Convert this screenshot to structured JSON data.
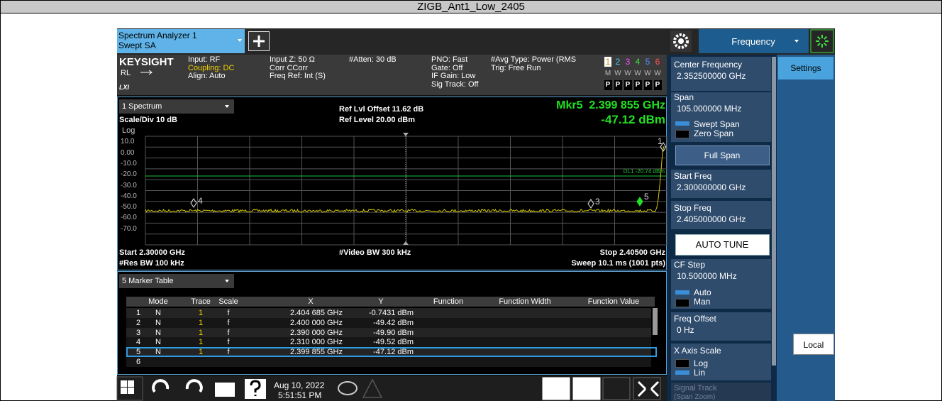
{
  "window_title": "ZIGB_Ant1_Low_2405",
  "tabs": {
    "instrument": [
      "Spectrum Analyzer 1",
      "Swept SA"
    ],
    "menu": "Frequency",
    "settings": "Settings"
  },
  "info_bar": {
    "brand": "KEYSIGHT",
    "mode": "RL",
    "lxi": "LXI",
    "input": [
      "Input: RF",
      "Coupling: DC",
      "Align: Auto"
    ],
    "impedance": [
      "Input Z: 50 Ω",
      "Corr CCorr",
      "Freq Ref: Int (S)"
    ],
    "atten": [
      "#Atten: 30 dB"
    ],
    "gate": [
      "PNO: Fast",
      "Gate: Off",
      "IF Gain: Low",
      "Sig Track: Off"
    ],
    "avg": [
      "#Avg Type: Power (RMS",
      "Trig: Free Run"
    ],
    "traces": [
      "1",
      "2",
      "3",
      "4",
      "5",
      "6"
    ],
    "trace_types": [
      "M",
      "W",
      "W",
      "W",
      "W",
      "W"
    ],
    "trace_detectors": [
      "P",
      "P",
      "P",
      "P",
      "P",
      "P"
    ]
  },
  "plot": {
    "window": "1 Spectrum",
    "scale": "Scale/Div 10 dB",
    "log": "Log",
    "ref_offset": "Ref Lvl Offset 11.62 dB",
    "ref_level": "Ref Level 20.00 dBm",
    "marker_freq": "Mkr5  2.399 855 GHz",
    "marker_amp": "-47.12 dBm",
    "y_labels": [
      "10.0",
      "0.00",
      "-10.0",
      "-20.0",
      "-30.0",
      "-40.0",
      "-50.0",
      "-60.0",
      "-70.0"
    ],
    "display_line": "DL1 -20.74 dBm",
    "markers": [
      "1",
      "4",
      "3",
      "5"
    ],
    "start": "Start 2.30000 GHz",
    "res_bw": "#Res BW 100 kHz",
    "video_bw": "#Video BW 300 kHz",
    "stop": "Stop 2.40500 GHz",
    "sweep": "Sweep 10.1 ms (1001 pts)"
  },
  "marker_table": {
    "title": "5 Marker Table",
    "columns": [
      "Mode",
      "Trace",
      "Scale",
      "X",
      "Y",
      "Function",
      "Function Width",
      "Function Value"
    ],
    "rows": [
      [
        "1",
        "N",
        "1",
        "f",
        "2.404 685 GHz",
        "-0.7431 dBm"
      ],
      [
        "2",
        "N",
        "1",
        "f",
        "2.400 000 GHz",
        "-49.42 dBm"
      ],
      [
        "3",
        "N",
        "1",
        "f",
        "2.390 000 GHz",
        "-49.90 dBm"
      ],
      [
        "4",
        "N",
        "1",
        "f",
        "2.310 000 GHz",
        "-49.52 dBm"
      ],
      [
        "5",
        "N",
        "1",
        "f",
        "2.399 855 GHz",
        "-47.12 dBm"
      ],
      [
        "6"
      ]
    ]
  },
  "softkeys": {
    "center": [
      "Center Frequency",
      "2.352500000 GHz"
    ],
    "span": [
      "Span",
      "105.000000 MHz"
    ],
    "span_mode": [
      "Swept Span",
      "Zero Span"
    ],
    "full_span": "Full Span",
    "start": [
      "Start Freq",
      "2.300000000 GHz"
    ],
    "stop": [
      "Stop Freq",
      "2.405000000 GHz"
    ],
    "auto_tune": "AUTO TUNE",
    "cf_step": [
      "CF Step",
      "10.500000 MHz"
    ],
    "cf_mode": [
      "Auto",
      "Man"
    ],
    "offset": [
      "Freq Offset",
      "0 Hz"
    ],
    "x_scale": [
      "X Axis Scale",
      "Log",
      "Lin"
    ],
    "signal_track": [
      "Signal Track",
      "(Span Zoom)"
    ],
    "local": "Local"
  },
  "taskbar": {
    "date": "Aug 10, 2022",
    "time": "5:51:51 PM"
  }
}
